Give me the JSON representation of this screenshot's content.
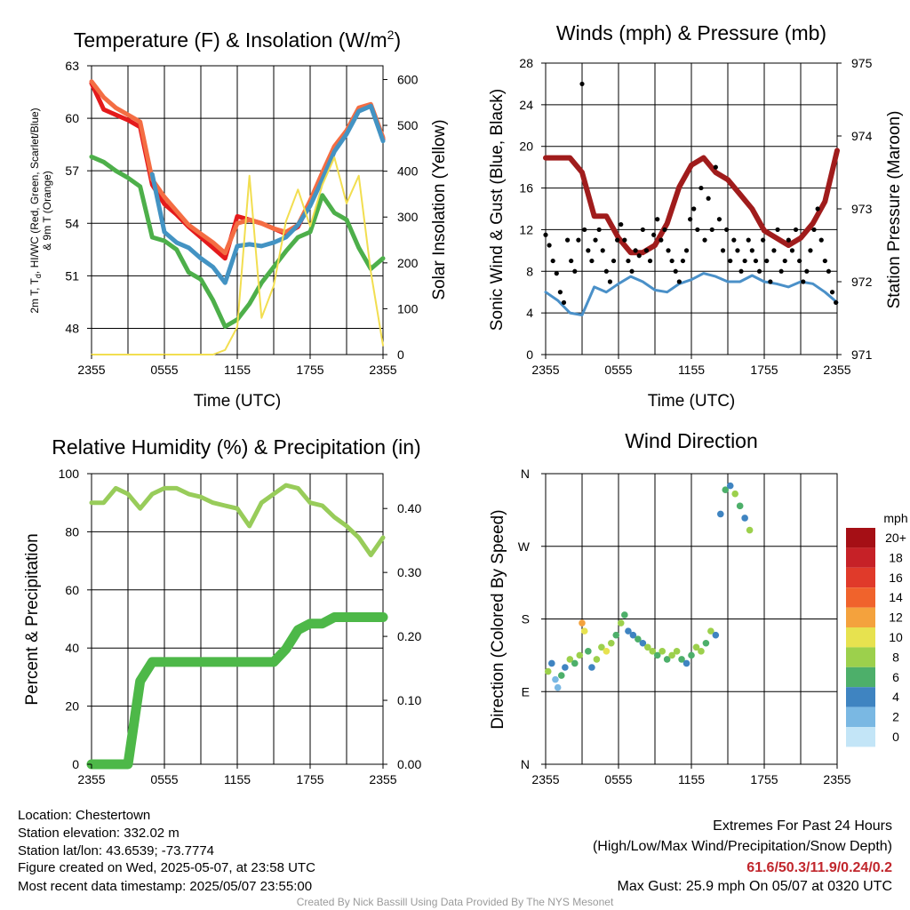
{
  "panels": {
    "temperature": {
      "title": "Temperature (F) & Insolation (W/m",
      "title_sup": "2",
      "title_end": ")",
      "xlabel": "Time (UTC)",
      "ylabel_left_1": "2m T, T",
      "ylabel_left_sub": "d",
      "ylabel_left_2": ", HI/WC (Red, Green, Scarlet/Blue)",
      "ylabel_left_3": "& 9m T (Orange)",
      "ylabel_right": "Solar Insolation (Yellow)"
    },
    "winds": {
      "title": "Winds (mph) & Pressure (mb)",
      "xlabel": "Time (UTC)",
      "ylabel_left": "Sonic Wind & Gust (Blue, Black)",
      "ylabel_right": "Station Pressure (Maroon)"
    },
    "humidity": {
      "title": "Relative Humidity (%) & Precipitation (in)",
      "ylabel_left": "Percent & Precipitation"
    },
    "direction": {
      "title": "Wind Direction",
      "ylabel_left": "Direction (Colored By Speed)",
      "legend_title": "mph"
    }
  },
  "chart_data": [
    {
      "type": "line",
      "id": "temperature",
      "x_tick_labels": [
        "2355",
        "0555",
        "1155",
        "1755",
        "2355"
      ],
      "x": [
        0,
        1,
        2,
        3,
        4,
        5,
        6,
        7,
        8,
        9,
        10,
        11,
        12,
        13,
        14,
        15,
        16,
        17,
        18,
        19,
        20,
        21,
        22,
        23,
        24
      ],
      "ylim_left": [
        46.5,
        63
      ],
      "y_ticks_left": [
        48,
        51,
        54,
        57,
        60,
        63
      ],
      "ylim_right": [
        0,
        630
      ],
      "y_ticks_right": [
        0,
        100,
        200,
        300,
        400,
        500,
        600
      ],
      "series": [
        {
          "axis": "left",
          "color": "#e41a1c",
          "values": [
            62.0,
            60.5,
            60.2,
            59.9,
            59.5,
            56.2,
            55.1,
            54.5,
            53.8,
            53.2,
            52.6,
            52.0,
            54.4,
            54.2,
            54.0,
            53.7,
            53.4,
            53.8,
            55.2,
            56.8,
            58.3,
            59.2,
            60.5,
            60.7,
            58.8
          ]
        },
        {
          "axis": "left",
          "color": "#f46d43",
          "values": [
            62.1,
            61.2,
            60.6,
            60.2,
            59.8,
            56.5,
            55.5,
            54.7,
            53.9,
            53.4,
            52.9,
            52.3,
            54.0,
            54.2,
            54.0,
            53.7,
            53.5,
            53.9,
            55.3,
            56.9,
            58.4,
            59.3,
            60.6,
            60.8,
            58.9
          ]
        },
        {
          "axis": "left",
          "color": "#4393c3",
          "values": [
            null,
            null,
            null,
            null,
            null,
            56.8,
            53.5,
            52.9,
            52.6,
            52.0,
            51.5,
            50.6,
            52.7,
            52.8,
            52.7,
            52.9,
            53.2,
            53.9,
            55.0,
            56.5,
            58.1,
            59.1,
            60.4,
            60.7,
            58.7
          ]
        },
        {
          "axis": "left",
          "color": "#4daf4a",
          "values": [
            57.8,
            57.5,
            57.0,
            56.6,
            56.1,
            53.2,
            53.0,
            52.5,
            51.2,
            50.8,
            49.6,
            48.1,
            48.5,
            49.4,
            50.6,
            51.5,
            52.4,
            53.2,
            53.5,
            55.6,
            54.6,
            54.2,
            52.6,
            51.4,
            52.0
          ]
        },
        {
          "axis": "right",
          "color": "#f2de50",
          "values": [
            0,
            0,
            0,
            0,
            0,
            0,
            0,
            0,
            0,
            0,
            0,
            10,
            60,
            390,
            80,
            150,
            290,
            360,
            280,
            370,
            430,
            330,
            390,
            180,
            20
          ]
        }
      ]
    },
    {
      "type": "line",
      "id": "winds",
      "x_tick_labels": [
        "2355",
        "0555",
        "1155",
        "1755",
        "2355"
      ],
      "x": [
        0,
        1,
        2,
        3,
        4,
        5,
        6,
        7,
        8,
        9,
        10,
        11,
        12,
        13,
        14,
        15,
        16,
        17,
        18,
        19,
        20,
        21,
        22,
        23,
        24
      ],
      "ylim_left": [
        0,
        28
      ],
      "y_ticks_left": [
        0,
        4,
        8,
        12,
        16,
        20,
        24,
        28
      ],
      "ylim_right": [
        971,
        975
      ],
      "y_ticks_right": [
        971,
        972,
        973,
        974,
        975
      ],
      "series": [
        {
          "axis": "right",
          "name_hidden": true,
          "color": "#a01c1c",
          "values": [
            973.7,
            973.7,
            973.7,
            973.5,
            972.9,
            972.9,
            972.6,
            972.4,
            972.4,
            972.5,
            972.8,
            973.3,
            973.6,
            973.7,
            973.5,
            973.4,
            973.2,
            973.0,
            972.7,
            972.6,
            972.5,
            972.6,
            972.8,
            973.1,
            973.8
          ]
        },
        {
          "axis": "left",
          "color": "#4a90c8",
          "values": [
            6.0,
            5.2,
            4.0,
            3.8,
            6.5,
            6.0,
            6.8,
            7.5,
            7.0,
            6.2,
            6.0,
            6.8,
            7.2,
            7.8,
            7.5,
            7.0,
            7.0,
            7.6,
            7.0,
            6.8,
            6.5,
            7.0,
            6.8,
            6.0,
            5.0
          ]
        }
      ],
      "gust_points": [
        [
          0,
          11.5
        ],
        [
          0.3,
          10.5
        ],
        [
          0.6,
          9.0
        ],
        [
          0.9,
          7.8
        ],
        [
          1.2,
          6.0
        ],
        [
          1.5,
          5.0
        ],
        [
          1.8,
          11.0
        ],
        [
          2.1,
          9.0
        ],
        [
          2.4,
          8.0
        ],
        [
          2.7,
          11.0
        ],
        [
          3.0,
          26.0
        ],
        [
          3.2,
          12.0
        ],
        [
          3.5,
          10.0
        ],
        [
          3.8,
          9.0
        ],
        [
          4.1,
          11.0
        ],
        [
          4.4,
          12.0
        ],
        [
          4.7,
          10.0
        ],
        [
          5.0,
          8.0
        ],
        [
          5.3,
          7.0
        ],
        [
          5.6,
          9.0
        ],
        [
          5.9,
          11.0
        ],
        [
          6.2,
          12.5
        ],
        [
          6.5,
          11.0
        ],
        [
          6.8,
          9.0
        ],
        [
          7.1,
          8.0
        ],
        [
          7.4,
          10.0
        ],
        [
          7.7,
          9.5
        ],
        [
          8.0,
          12.0
        ],
        [
          8.3,
          10.0
        ],
        [
          8.6,
          9.0
        ],
        [
          8.9,
          11.5
        ],
        [
          9.2,
          13.0
        ],
        [
          9.5,
          11.0
        ],
        [
          9.8,
          12.0
        ],
        [
          10.1,
          10.0
        ],
        [
          10.4,
          9.0
        ],
        [
          10.7,
          8.0
        ],
        [
          11.0,
          7.0
        ],
        [
          11.3,
          9.0
        ],
        [
          11.6,
          10.0
        ],
        [
          11.9,
          13.0
        ],
        [
          12.2,
          14.0
        ],
        [
          12.5,
          12.0
        ],
        [
          12.8,
          16.0
        ],
        [
          13.1,
          11.0
        ],
        [
          13.4,
          15.0
        ],
        [
          13.7,
          12.0
        ],
        [
          14.0,
          18.0
        ],
        [
          14.3,
          13.0
        ],
        [
          14.6,
          10.0
        ],
        [
          14.9,
          12.0
        ],
        [
          15.2,
          9.0
        ],
        [
          15.5,
          11.0
        ],
        [
          15.8,
          10.0
        ],
        [
          16.1,
          8.0
        ],
        [
          16.4,
          9.0
        ],
        [
          16.7,
          11.0
        ],
        [
          17.0,
          10.0
        ],
        [
          17.3,
          9.0
        ],
        [
          17.6,
          8.0
        ],
        [
          17.9,
          11.0
        ],
        [
          18.2,
          9.0
        ],
        [
          18.5,
          7.0
        ],
        [
          18.8,
          10.0
        ],
        [
          19.1,
          12.0
        ],
        [
          19.4,
          8.0
        ],
        [
          19.7,
          9.0
        ],
        [
          20.0,
          11.0
        ],
        [
          20.3,
          10.0
        ],
        [
          20.6,
          12.0
        ],
        [
          20.9,
          9.0
        ],
        [
          21.2,
          7.0
        ],
        [
          21.5,
          8.0
        ],
        [
          21.8,
          10.0
        ],
        [
          22.1,
          12.0
        ],
        [
          22.4,
          14.0
        ],
        [
          22.7,
          11.0
        ],
        [
          23.0,
          9.0
        ],
        [
          23.3,
          8.0
        ],
        [
          23.6,
          6.0
        ],
        [
          23.9,
          5.0
        ]
      ]
    },
    {
      "type": "line",
      "id": "humidity",
      "x_tick_labels": [
        "2355",
        "0555",
        "1155",
        "1755",
        "2355"
      ],
      "x": [
        0,
        1,
        2,
        3,
        4,
        5,
        6,
        7,
        8,
        9,
        10,
        11,
        12,
        13,
        14,
        15,
        16,
        17,
        18,
        19,
        20,
        21,
        22,
        23,
        24
      ],
      "ylim_left": [
        0,
        100
      ],
      "y_ticks_left": [
        0,
        20,
        40,
        60,
        80,
        100
      ],
      "ylim_right": [
        0,
        0.4545
      ],
      "y_ticks_right": [
        0.0,
        0.1,
        0.2,
        0.3,
        0.4
      ],
      "y_tick_labels_right": [
        "0.00",
        "0.10",
        "0.20",
        "0.30",
        "0.40"
      ],
      "series": [
        {
          "axis": "left",
          "color": "#98cc5a",
          "values": [
            90,
            90,
            95,
            93,
            88,
            93,
            95,
            95,
            93,
            92,
            90,
            89,
            88,
            82,
            90,
            93,
            96,
            95,
            90,
            89,
            85,
            82,
            78,
            72,
            78
          ]
        },
        {
          "axis": "right",
          "color": "#4db848",
          "values": [
            0,
            0,
            0,
            0,
            0.13,
            0.16,
            0.16,
            0.16,
            0.16,
            0.16,
            0.16,
            0.16,
            0.16,
            0.16,
            0.16,
            0.16,
            0.18,
            0.21,
            0.22,
            0.22,
            0.23,
            0.23,
            0.23,
            0.23,
            0.23
          ]
        }
      ]
    },
    {
      "type": "scatter",
      "id": "direction",
      "x_tick_labels": [
        "2355",
        "0555",
        "1155",
        "1755",
        "2355"
      ],
      "y_tick_labels": [
        "N",
        "E",
        "S",
        "W",
        "N"
      ],
      "ylim": [
        0,
        360
      ],
      "points": [
        [
          0.2,
          115,
          8
        ],
        [
          0.5,
          125,
          4
        ],
        [
          0.8,
          105,
          2
        ],
        [
          1.0,
          95,
          2
        ],
        [
          1.3,
          110,
          6
        ],
        [
          1.6,
          120,
          4
        ],
        [
          2.0,
          130,
          8
        ],
        [
          2.4,
          125,
          6
        ],
        [
          2.8,
          135,
          8
        ],
        [
          3.0,
          175,
          12
        ],
        [
          3.2,
          165,
          10
        ],
        [
          3.5,
          140,
          6
        ],
        [
          3.8,
          120,
          4
        ],
        [
          4.2,
          130,
          8
        ],
        [
          4.6,
          145,
          8
        ],
        [
          5.0,
          140,
          10
        ],
        [
          5.4,
          150,
          8
        ],
        [
          5.8,
          160,
          6
        ],
        [
          6.2,
          175,
          8
        ],
        [
          6.5,
          185,
          6
        ],
        [
          6.8,
          165,
          4
        ],
        [
          7.2,
          160,
          4
        ],
        [
          7.6,
          155,
          6
        ],
        [
          8.0,
          150,
          4
        ],
        [
          8.4,
          145,
          8
        ],
        [
          8.8,
          140,
          8
        ],
        [
          9.2,
          135,
          6
        ],
        [
          9.6,
          140,
          8
        ],
        [
          10.0,
          130,
          6
        ],
        [
          10.4,
          135,
          8
        ],
        [
          10.8,
          140,
          8
        ],
        [
          11.2,
          130,
          6
        ],
        [
          11.6,
          125,
          4
        ],
        [
          12.0,
          135,
          6
        ],
        [
          12.4,
          145,
          8
        ],
        [
          12.8,
          140,
          8
        ],
        [
          13.2,
          150,
          6
        ],
        [
          13.6,
          165,
          8
        ],
        [
          14.0,
          160,
          4
        ],
        [
          14.4,
          310,
          4
        ],
        [
          14.8,
          340,
          6
        ],
        [
          15.2,
          345,
          4
        ],
        [
          15.6,
          335,
          8
        ],
        [
          16.0,
          320,
          6
        ],
        [
          16.4,
          305,
          4
        ],
        [
          16.8,
          290,
          8
        ]
      ],
      "speed_scale": {
        "labels": [
          "20+",
          "18",
          "16",
          "14",
          "12",
          "10",
          "8",
          "6",
          "4",
          "2",
          "0"
        ],
        "colors": [
          "#a50f15",
          "#c62127",
          "#e03a2a",
          "#f0632c",
          "#f4a23d",
          "#e7e24f",
          "#9cd04c",
          "#4daf6a",
          "#3f84c1",
          "#7ab8e3",
          "#c3e5f7"
        ]
      }
    }
  ],
  "footer": {
    "location": "Location: Chestertown",
    "elevation": "Station elevation: 332.02 m",
    "latlon": "Station lat/lon: 43.6539; -73.7774",
    "created": "Figure created on Wed, 2025-05-07, at 23:58 UTC",
    "recent": "Most recent data timestamp: 2025/05/07 23:55:00",
    "extremes_title": "Extremes For Past 24 Hours",
    "extremes_sub": "(High/Low/Max Wind/Precipitation/Snow Depth)",
    "extremes_values": "61.6/50.3/11.9/0.24/0.2",
    "max_gust": "Max Gust: 25.9 mph On 05/07 at 0320 UTC",
    "credit": "Created By Nick Bassill Using Data Provided By The NYS Mesonet"
  }
}
